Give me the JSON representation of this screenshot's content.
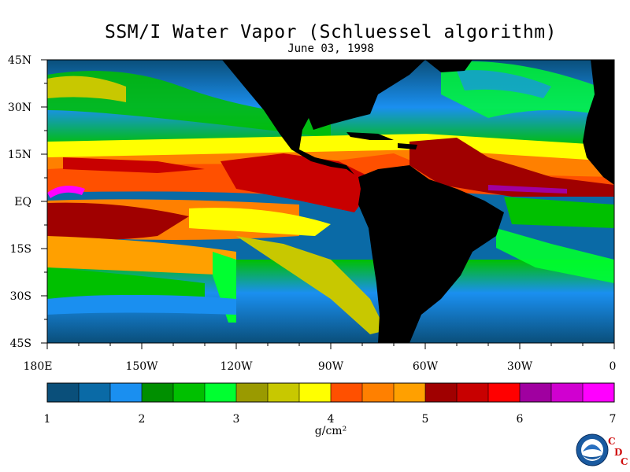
{
  "title": "SSM/I Water Vapor (Schluessel algorithm)",
  "subtitle": "June 03, 1998",
  "lat_labels": [
    "45N",
    "30N",
    "15N",
    "EQ",
    "15S",
    "30S",
    "45S"
  ],
  "lon_labels": [
    "180E",
    "150W",
    "120W",
    "90W",
    "60W",
    "30W",
    "0"
  ],
  "colorbar": {
    "ticks": [
      "1",
      "2",
      "3",
      "4",
      "5",
      "6",
      "7"
    ],
    "colors": [
      "#0a4f7a",
      "#0a6aa6",
      "#1a8ff0",
      "#008f00",
      "#00c000",
      "#00ff30",
      "#9a9a00",
      "#c8c800",
      "#ffff00",
      "#ff5000",
      "#ff8000",
      "#ffa000",
      "#a00000",
      "#c80000",
      "#ff0000",
      "#a000a0",
      "#d000d0",
      "#ff00ff"
    ],
    "units": "g/cm²"
  },
  "logo": {
    "icon": "noaa-logo-icon",
    "letters": [
      "C",
      "D",
      "C"
    ]
  }
}
